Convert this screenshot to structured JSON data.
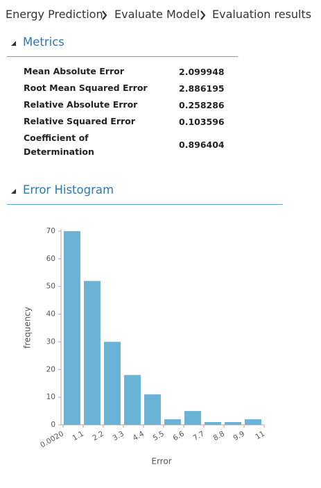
{
  "breadcrumb": [
    "Energy Prediction",
    "Evaluate Model",
    "Evaluation results"
  ],
  "metrics": {
    "title": "Metrics",
    "rows": [
      {
        "name": "Mean Absolute Error",
        "value": 2.099948
      },
      {
        "name": "Root Mean Squared Error",
        "value": 2.886195
      },
      {
        "name": "Relative Absolute Error",
        "value": 0.258286
      },
      {
        "name": "Relative Squared Error",
        "value": 0.103596
      },
      {
        "name": "Coefficient of Determination",
        "value": 0.896404
      }
    ]
  },
  "chart_data": {
    "type": "histogram",
    "title": "Error Histogram",
    "xlabel": "Error",
    "ylabel": "frequency",
    "bins": [
      0.002,
      1.1,
      2.2,
      3.3,
      4.4,
      5.5,
      6.6,
      7.7,
      8.8,
      9.9,
      11
    ],
    "values": [
      70,
      52,
      30,
      18,
      11,
      2,
      5,
      1,
      1,
      2
    ],
    "color": "#6bb3d6",
    "xlim": [
      0.002,
      11
    ],
    "xticks": [
      {
        "value": 0.002,
        "label": "0.0020"
      },
      1.1,
      2.2,
      3.3,
      4.4,
      5.5,
      6.6,
      7.7,
      8.8,
      9.9,
      11
    ],
    "ylim": [
      0,
      70
    ],
    "yticks": [
      0,
      10,
      20,
      30,
      40,
      50,
      60,
      70
    ],
    "grid": false
  }
}
